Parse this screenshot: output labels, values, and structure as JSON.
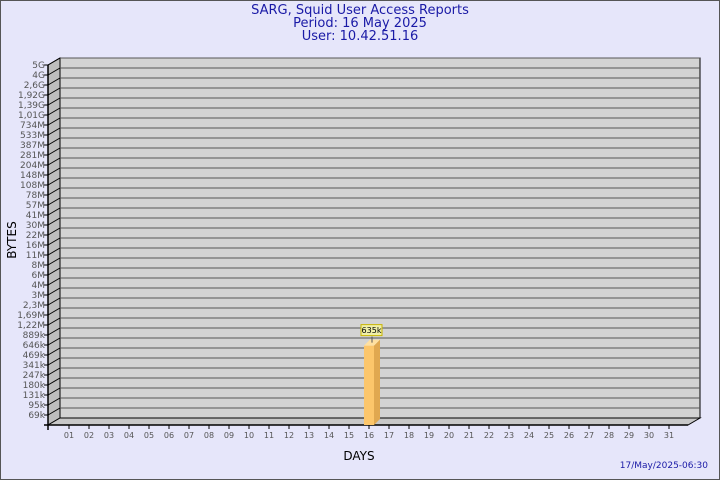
{
  "header": {
    "title": "SARG, Squid User Access Reports",
    "period": "Period: 16 May 2025",
    "user": "User: 10.42.51.16"
  },
  "footer": {
    "timestamp": "17/May/2025-06:30"
  },
  "colors": {
    "background": "#e6e6fa",
    "plot": "#d3d3d3",
    "bar": "#fcc66b",
    "bar_side": "#e0a850",
    "text": "#1a1aa6"
  },
  "chart_data": {
    "type": "bar",
    "xlabel": "DAYS",
    "ylabel": "BYTES",
    "y_ticks": [
      "69k",
      "95k",
      "131k",
      "180k",
      "247k",
      "341k",
      "469k",
      "646k",
      "889k",
      "1,22M",
      "1,69M",
      "2,3M",
      "3M",
      "4M",
      "6M",
      "8M",
      "11M",
      "16M",
      "22M",
      "30M",
      "41M",
      "57M",
      "78M",
      "108M",
      "148M",
      "204M",
      "281M",
      "387M",
      "533M",
      "734M",
      "1,01G",
      "1,39G",
      "1,92G",
      "2,6G",
      "4G",
      "5G"
    ],
    "categories": [
      "01",
      "02",
      "03",
      "04",
      "05",
      "06",
      "07",
      "08",
      "09",
      "10",
      "11",
      "12",
      "13",
      "14",
      "15",
      "16",
      "17",
      "18",
      "19",
      "20",
      "21",
      "22",
      "23",
      "24",
      "25",
      "26",
      "27",
      "28",
      "29",
      "30",
      "31"
    ],
    "series": [
      {
        "values": [
          null,
          null,
          null,
          null,
          null,
          null,
          null,
          null,
          null,
          null,
          null,
          null,
          null,
          null,
          null,
          635000,
          null,
          null,
          null,
          null,
          null,
          null,
          null,
          null,
          null,
          null,
          null,
          null,
          null,
          null,
          null
        ]
      }
    ],
    "data_labels": {
      "16": "635k"
    },
    "grid": true
  }
}
